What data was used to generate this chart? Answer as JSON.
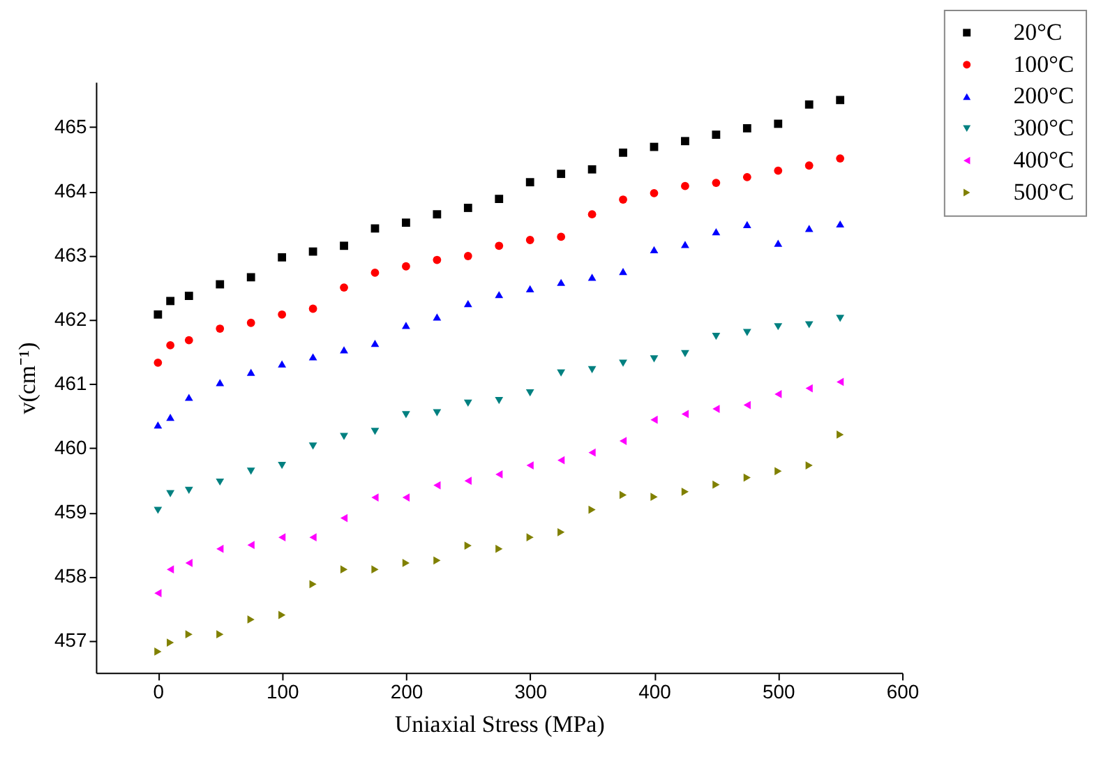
{
  "chart_data": {
    "type": "scatter",
    "xlabel": "Uniaxial Stress (MPa)",
    "ylabel": "v(cm⁻¹)",
    "x": [
      0,
      10,
      25,
      50,
      75,
      100,
      125,
      150,
      175,
      200,
      225,
      250,
      275,
      300,
      325,
      350,
      375,
      400,
      425,
      450,
      475,
      500,
      525,
      550
    ],
    "xlim": [
      -50,
      600
    ],
    "xticks": [
      0,
      100,
      200,
      300,
      400,
      500,
      600
    ],
    "ylim": [
      456.5,
      465.7
    ],
    "yticks": [
      457,
      458,
      459,
      460,
      461,
      462,
      463,
      464,
      465
    ],
    "grid": false,
    "legend": "top right",
    "series": [
      {
        "name": "20°C",
        "color": "#000000",
        "marker": "square",
        "values": [
          462.08,
          462.29,
          462.37,
          462.55,
          462.66,
          462.97,
          463.06,
          463.15,
          463.42,
          463.51,
          463.64,
          463.74,
          463.88,
          464.14,
          464.27,
          464.34,
          464.6,
          464.69,
          464.78,
          464.88,
          464.98,
          465.05,
          465.35,
          465.42
        ]
      },
      {
        "name": "100°C",
        "color": "#ff0000",
        "marker": "circle",
        "values": [
          461.33,
          461.6,
          461.68,
          461.86,
          461.95,
          462.08,
          462.17,
          462.5,
          462.73,
          462.83,
          462.93,
          462.99,
          463.15,
          463.24,
          463.29,
          463.64,
          463.87,
          463.97,
          464.08,
          464.13,
          464.22,
          464.32,
          464.4,
          464.51
        ]
      },
      {
        "name": "200°C",
        "color": "#0000ff",
        "marker": "triangle-up",
        "values": [
          460.36,
          460.48,
          460.79,
          461.02,
          461.18,
          461.31,
          461.42,
          461.53,
          461.63,
          461.91,
          462.04,
          462.25,
          462.39,
          462.48,
          462.58,
          462.66,
          462.75,
          463.09,
          463.17,
          463.37,
          463.48,
          463.19,
          463.42,
          463.49
        ]
      },
      {
        "name": "300°C",
        "color": "#008080",
        "marker": "triangle-down",
        "values": [
          459.03,
          459.29,
          459.34,
          459.47,
          459.64,
          459.73,
          460.03,
          460.18,
          460.26,
          460.52,
          460.55,
          460.7,
          460.74,
          460.86,
          461.17,
          461.22,
          461.32,
          461.39,
          461.47,
          461.74,
          461.8,
          461.89,
          461.92,
          462.02
        ]
      },
      {
        "name": "400°C",
        "color": "#ff00ff",
        "marker": "triangle-left",
        "values": [
          457.74,
          458.11,
          458.21,
          458.43,
          458.49,
          458.61,
          458.61,
          458.91,
          459.23,
          459.23,
          459.42,
          459.49,
          459.59,
          459.73,
          459.81,
          459.93,
          460.11,
          460.44,
          460.53,
          460.61,
          460.67,
          460.84,
          460.93,
          461.03
        ]
      },
      {
        "name": "500°C",
        "color": "#808000",
        "marker": "triangle-right",
        "values": [
          456.83,
          456.97,
          457.1,
          457.1,
          457.33,
          457.4,
          457.88,
          458.11,
          458.11,
          458.21,
          458.25,
          458.48,
          458.43,
          458.61,
          458.69,
          459.04,
          459.27,
          459.24,
          459.32,
          459.43,
          459.54,
          459.64,
          459.73,
          460.21
        ]
      }
    ]
  }
}
